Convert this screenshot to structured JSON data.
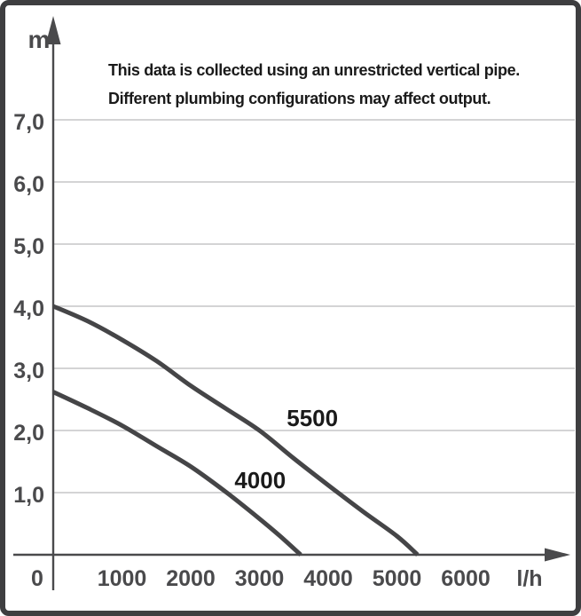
{
  "figure": {
    "frame_color": "#3e3e40",
    "background": "#ffffff"
  },
  "annotation": {
    "line1": "This data is collected using an unrestricted vertical pipe.",
    "line2": "Different plumbing configurations may affect output."
  },
  "axes": {
    "y_unit": "m",
    "x_unit": "l/h",
    "y_tick_labels": [
      "7,0",
      "6,0",
      "5,0",
      "4,0",
      "3,0",
      "2,0",
      "1,0"
    ],
    "y_tick_values": [
      7,
      6,
      5,
      4,
      3,
      2,
      1
    ],
    "x_tick_labels": [
      "0",
      "1000",
      "2000",
      "3000",
      "4000",
      "5000",
      "6000"
    ],
    "x_tick_values": [
      0,
      1000,
      2000,
      3000,
      4000,
      5000,
      6000
    ],
    "axis_color": "#4a4a4c",
    "grid_color": "#c5c5c7",
    "tick_label_color": "#4a4a4c"
  },
  "chart_data": {
    "type": "line",
    "title": "",
    "xlabel": "l/h",
    "ylabel": "m",
    "xlim": [
      0,
      6800
    ],
    "ylim": [
      0,
      7.9
    ],
    "grid": "horizontal",
    "legend": "inline-curve-labels",
    "curve_color": "#454547",
    "curve_label_color": "#1a1a1a",
    "series": [
      {
        "name": "5500",
        "label": "5500",
        "label_anchor": [
          3770,
          2.07
        ],
        "points": [
          [
            0,
            4.0
          ],
          [
            500,
            3.76
          ],
          [
            1000,
            3.46
          ],
          [
            1500,
            3.12
          ],
          [
            2000,
            2.72
          ],
          [
            2500,
            2.36
          ],
          [
            3000,
            2.0
          ],
          [
            3500,
            1.55
          ],
          [
            4000,
            1.12
          ],
          [
            4500,
            0.7
          ],
          [
            5000,
            0.3
          ],
          [
            5300,
            0
          ]
        ]
      },
      {
        "name": "4000",
        "label": "4000",
        "label_anchor": [
          3010,
          1.07
        ],
        "points": [
          [
            0,
            2.62
          ],
          [
            500,
            2.36
          ],
          [
            1000,
            2.08
          ],
          [
            1500,
            1.75
          ],
          [
            2000,
            1.42
          ],
          [
            2500,
            1.02
          ],
          [
            3000,
            0.58
          ],
          [
            3300,
            0.3
          ],
          [
            3600,
            0
          ]
        ]
      }
    ]
  }
}
